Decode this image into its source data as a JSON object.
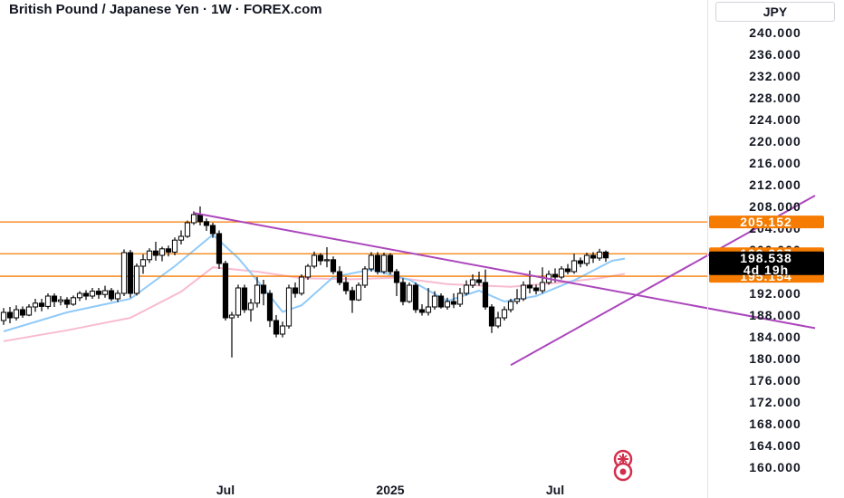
{
  "header": {
    "title": "British Pound / Japanese Yen · 1W · FOREX.com",
    "currency": "JPY"
  },
  "colors": {
    "level_line": "#f57c00",
    "trendline": "#ab47bc",
    "candle_up_fill": "#ffffff",
    "candle_down_fill": "#000000",
    "candle_outline": "#000000",
    "ma_fast": "#90caf9",
    "ma_slow": "#f8bbd0",
    "tag_orange": "#f57c00",
    "tag_black": "#000000",
    "logo_red": "#d32f4c"
  },
  "chart_data": {
    "type": "candlestick",
    "symbol": "British Pound / Japanese Yen",
    "interval": "1W",
    "ylim": [
      158,
      246
    ],
    "y_ticks": [
      "240.000",
      "236.000",
      "232.000",
      "228.000",
      "224.000",
      "220.000",
      "216.000",
      "212.000",
      "208.000",
      "204.000",
      "200.000",
      "196.000",
      "192.000",
      "188.000",
      "184.000",
      "180.000",
      "176.000",
      "172.000",
      "168.000",
      "164.000",
      "160.000"
    ],
    "x_ticks": [
      {
        "label": "Jul",
        "week": 35
      },
      {
        "label": "2025",
        "week": 61
      },
      {
        "label": "Jul",
        "week": 87
      }
    ],
    "week_range": [
      0,
      112
    ],
    "horizontal_levels": [
      {
        "value": 205.152,
        "label": "205.152"
      },
      {
        "value": 199.297,
        "label": "199.297"
      },
      {
        "value": 195.154,
        "label": "195.154"
      }
    ],
    "current_price": {
      "value": 198.538,
      "label": "198.538",
      "countdown": "4d 19h"
    },
    "trendlines": [
      {
        "from": [
          30,
          206.8
        ],
        "to": [
          128,
          185.6
        ]
      },
      {
        "from": [
          80,
          178.8
        ],
        "to": [
          128,
          210.0
        ]
      }
    ],
    "candles": [
      [
        187.0,
        188.5,
        186.2,
        189.3
      ],
      [
        188.5,
        187.5,
        186.5,
        189.5
      ],
      [
        187.5,
        189.0,
        187.0,
        189.8
      ],
      [
        189.0,
        188.0,
        187.5,
        189.6
      ],
      [
        188.0,
        189.5,
        187.8,
        190.0
      ],
      [
        189.5,
        190.2,
        188.6,
        191.0
      ],
      [
        190.2,
        189.6,
        188.7,
        191.0
      ],
      [
        189.6,
        191.5,
        189.1,
        192.0
      ],
      [
        191.5,
        190.5,
        189.5,
        192.0
      ],
      [
        190.5,
        190.8,
        189.8,
        191.5
      ],
      [
        190.8,
        190.0,
        189.3,
        191.3
      ],
      [
        190.0,
        191.2,
        189.7,
        191.6
      ],
      [
        191.2,
        192.0,
        190.6,
        192.4
      ],
      [
        192.0,
        191.5,
        190.8,
        192.6
      ],
      [
        191.5,
        192.4,
        191.0,
        193.0
      ],
      [
        192.4,
        191.8,
        191.0,
        193.0
      ],
      [
        191.8,
        192.5,
        191.2,
        193.4
      ],
      [
        192.5,
        191.0,
        190.6,
        193.0
      ],
      [
        191.0,
        192.0,
        190.4,
        192.6
      ],
      [
        192.0,
        199.5,
        191.5,
        200.1
      ],
      [
        199.5,
        192.0,
        191.2,
        200.0
      ],
      [
        192.0,
        197.0,
        191.6,
        197.5
      ],
      [
        197.0,
        198.2,
        195.6,
        199.2
      ],
      [
        198.2,
        199.8,
        197.6,
        200.3
      ],
      [
        199.8,
        199.0,
        198.0,
        201.5
      ],
      [
        199.0,
        200.2,
        197.9,
        200.6
      ],
      [
        200.2,
        199.6,
        198.8,
        200.8
      ],
      [
        199.6,
        201.8,
        199.0,
        202.3
      ],
      [
        201.8,
        202.5,
        201.0,
        203.6
      ],
      [
        202.5,
        205.0,
        202.2,
        205.4
      ],
      [
        205.0,
        206.5,
        204.6,
        207.1
      ],
      [
        206.5,
        205.2,
        204.5,
        208.0
      ],
      [
        205.2,
        204.5,
        203.5,
        205.8
      ],
      [
        204.5,
        203.0,
        202.2,
        205.0
      ],
      [
        203.0,
        197.5,
        196.5,
        203.6
      ],
      [
        197.5,
        187.5,
        187.0,
        198.0
      ],
      [
        187.5,
        188.0,
        180.2,
        188.6
      ],
      [
        188.0,
        193.0,
        187.5,
        193.6
      ],
      [
        193.0,
        189.0,
        188.4,
        193.6
      ],
      [
        189.0,
        190.2,
        186.8,
        191.0
      ],
      [
        190.2,
        193.5,
        189.4,
        195.0
      ],
      [
        193.5,
        192.0,
        189.8,
        194.5
      ],
      [
        192.0,
        187.0,
        185.8,
        192.6
      ],
      [
        187.0,
        184.5,
        183.9,
        188.0
      ],
      [
        184.5,
        186.0,
        183.9,
        186.8
      ],
      [
        186.0,
        193.0,
        185.5,
        193.6
      ],
      [
        193.0,
        192.0,
        191.2,
        194.0
      ],
      [
        192.0,
        195.0,
        191.6,
        195.5
      ],
      [
        195.0,
        197.0,
        194.5,
        197.4
      ],
      [
        197.0,
        199.0,
        196.6,
        199.7
      ],
      [
        199.0,
        198.0,
        197.2,
        199.4
      ],
      [
        198.0,
        198.2,
        196.8,
        200.5
      ],
      [
        198.2,
        196.0,
        195.5,
        198.8
      ],
      [
        196.0,
        194.0,
        193.5,
        197.0
      ],
      [
        194.0,
        192.5,
        191.8,
        195.0
      ],
      [
        192.5,
        190.8,
        188.4,
        193.2
      ],
      [
        190.8,
        193.5,
        190.6,
        194.0
      ],
      [
        193.5,
        196.5,
        193.0,
        197.0
      ],
      [
        196.5,
        199.0,
        196.0,
        199.6
      ],
      [
        199.0,
        196.0,
        195.5,
        199.6
      ],
      [
        196.0,
        199.0,
        195.6,
        199.5
      ],
      [
        199.0,
        196.0,
        195.5,
        199.4
      ],
      [
        196.0,
        194.0,
        191.5,
        196.5
      ],
      [
        194.0,
        190.5,
        189.8,
        194.8
      ],
      [
        190.5,
        193.5,
        190.2,
        194.0
      ],
      [
        193.5,
        189.0,
        188.4,
        194.0
      ],
      [
        189.0,
        188.5,
        187.9,
        190.0
      ],
      [
        188.5,
        189.5,
        187.9,
        193.0
      ],
      [
        189.5,
        191.5,
        189.0,
        192.4
      ],
      [
        191.5,
        189.5,
        189.2,
        192.0
      ],
      [
        189.5,
        190.5,
        189.0,
        191.2
      ],
      [
        190.5,
        190.0,
        189.3,
        192.0
      ],
      [
        190.0,
        192.0,
        189.5,
        193.0
      ],
      [
        192.0,
        193.5,
        191.6,
        194.4
      ],
      [
        193.5,
        194.5,
        193.0,
        195.5
      ],
      [
        194.5,
        194.0,
        193.4,
        196.0
      ],
      [
        194.0,
        189.5,
        189.0,
        196.4
      ],
      [
        189.5,
        186.0,
        184.7,
        190.0
      ],
      [
        186.0,
        187.5,
        185.6,
        188.6
      ],
      [
        187.5,
        189.0,
        187.0,
        189.6
      ],
      [
        189.0,
        190.5,
        188.5,
        191.0
      ],
      [
        190.5,
        191.0,
        190.0,
        192.8
      ],
      [
        191.0,
        193.5,
        190.6,
        194.2
      ],
      [
        193.5,
        193.0,
        192.0,
        196.2
      ],
      [
        193.0,
        192.5,
        191.8,
        193.6
      ],
      [
        192.5,
        194.0,
        192.0,
        196.8
      ],
      [
        194.0,
        195.5,
        193.6,
        196.2
      ],
      [
        195.5,
        195.0,
        194.0,
        196.6
      ],
      [
        195.0,
        196.5,
        194.6,
        197.0
      ],
      [
        196.5,
        196.0,
        195.5,
        197.4
      ],
      [
        196.0,
        198.0,
        195.6,
        199.3
      ],
      [
        198.0,
        197.5,
        196.8,
        198.6
      ],
      [
        197.5,
        199.0,
        197.0,
        199.5
      ],
      [
        199.0,
        198.5,
        197.6,
        199.6
      ],
      [
        198.5,
        199.6,
        198.0,
        200.2
      ],
      [
        199.6,
        198.538,
        197.8,
        199.9
      ]
    ],
    "ma_fast": [
      [
        0,
        185.0
      ],
      [
        10,
        188.5
      ],
      [
        20,
        191.0
      ],
      [
        27,
        197.0
      ],
      [
        33,
        202.8
      ],
      [
        37,
        198.5
      ],
      [
        41,
        193.0
      ],
      [
        44,
        188.6
      ],
      [
        47,
        189.8
      ],
      [
        52,
        195.0
      ],
      [
        58,
        196.4
      ],
      [
        64,
        194.5
      ],
      [
        70,
        190.6
      ],
      [
        75,
        192.5
      ],
      [
        79,
        190.5
      ],
      [
        84,
        191.5
      ],
      [
        90,
        194.4
      ],
      [
        96,
        198.0
      ],
      [
        98,
        198.4
      ]
    ],
    "ma_slow": [
      [
        0,
        183.2
      ],
      [
        10,
        185.2
      ],
      [
        20,
        187.5
      ],
      [
        28,
        192.3
      ],
      [
        33,
        196.8
      ],
      [
        40,
        196.0
      ],
      [
        47,
        194.8
      ],
      [
        55,
        194.6
      ],
      [
        62,
        194.9
      ],
      [
        70,
        193.7
      ],
      [
        80,
        193.2
      ],
      [
        88,
        194.0
      ],
      [
        94,
        194.8
      ],
      [
        98,
        195.6
      ]
    ]
  }
}
